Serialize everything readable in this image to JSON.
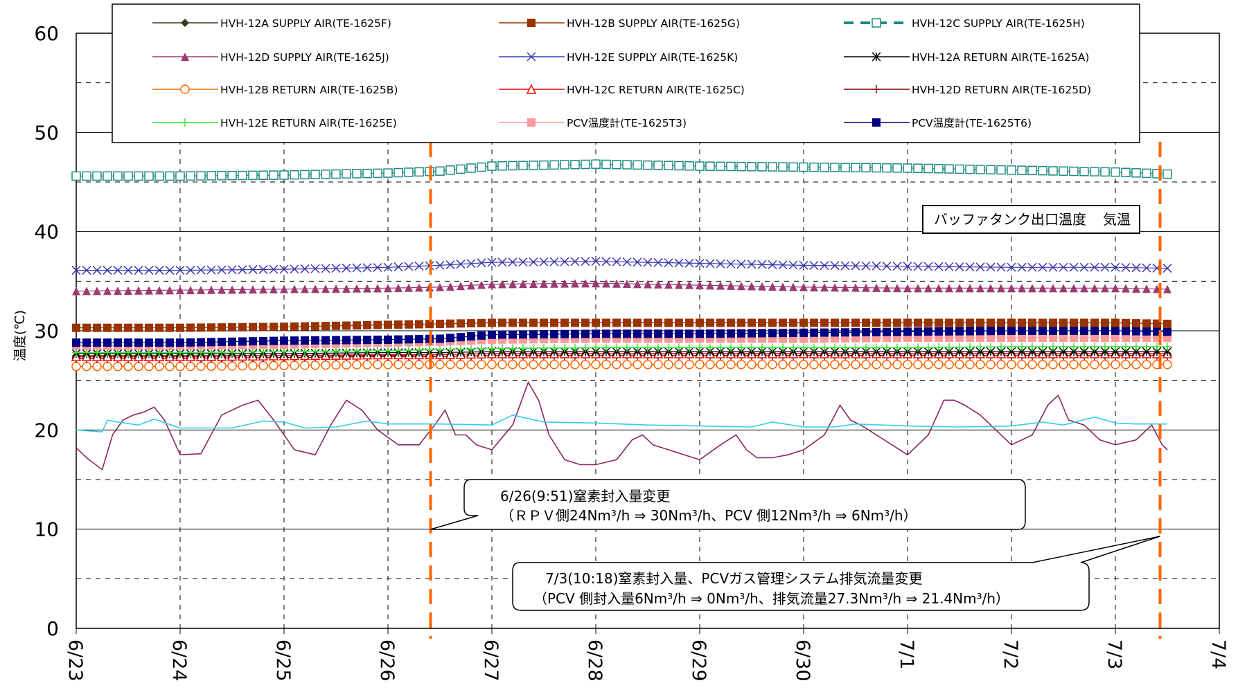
{
  "chart_data": {
    "type": "line",
    "ylabel": "温度(℃)",
    "ylim": [
      0,
      60
    ],
    "yticks": [
      "0",
      "10",
      "20",
      "30",
      "40",
      "50",
      "60"
    ],
    "xlim": [
      "6/23",
      "7/4"
    ],
    "xticks": [
      "6/23",
      "6/24",
      "6/25",
      "6/26",
      "6/27",
      "6/28",
      "6/29",
      "6/30",
      "7/1",
      "7/2",
      "7/3",
      "7/4"
    ],
    "grid": true,
    "legend_position": "top",
    "series": [
      {
        "name": "HVH-12A SUPPLY AIR(TE-1625F)",
        "color": "#3b3b1e",
        "marker": "diamond",
        "x": [
          0,
          1,
          2,
          3,
          3.5,
          4,
          5,
          6,
          7,
          8,
          9,
          10,
          10.5
        ],
        "values": [
          27.5,
          27.5,
          27.5,
          27.5,
          27.6,
          27.7,
          27.7,
          27.7,
          27.7,
          27.7,
          27.7,
          27.7,
          27.7
        ]
      },
      {
        "name": "HVH-12B SUPPLY AIR(TE-1625G)",
        "color": "#993300",
        "marker": "square",
        "x": [
          0,
          1,
          2,
          3,
          3.5,
          4,
          5,
          6,
          7,
          8,
          9,
          10,
          10.5
        ],
        "values": [
          30.3,
          30.3,
          30.4,
          30.6,
          30.7,
          30.8,
          30.8,
          30.8,
          30.8,
          30.8,
          30.8,
          30.8,
          30.7
        ]
      },
      {
        "name": "HVH-12C SUPPLY AIR(TE-1625H)",
        "color": "#1c8a80",
        "marker": "open-square",
        "x": [
          0,
          1,
          2,
          3,
          3.5,
          4,
          5,
          6,
          7,
          8,
          9,
          10,
          10.5
        ],
        "values": [
          45.6,
          45.6,
          45.7,
          45.9,
          46.1,
          46.6,
          46.8,
          46.6,
          46.5,
          46.4,
          46.2,
          46.0,
          45.8
        ]
      },
      {
        "name": "HVH-12D SUPPLY AIR(TE-1625J)",
        "color": "#9b3b70",
        "marker": "triangle",
        "x": [
          0,
          1,
          2,
          3,
          3.5,
          4,
          5,
          6,
          7,
          8,
          9,
          10,
          10.5
        ],
        "values": [
          34.0,
          34.1,
          34.2,
          34.3,
          34.4,
          34.7,
          34.8,
          34.6,
          34.4,
          34.3,
          34.3,
          34.3,
          34.2
        ]
      },
      {
        "name": "HVH-12E SUPPLY AIR(TE-1625K)",
        "color": "#3a3ab0",
        "marker": "x",
        "x": [
          0,
          1,
          2,
          3,
          3.5,
          4,
          5,
          6,
          7,
          8,
          9,
          10,
          10.5
        ],
        "values": [
          36.1,
          36.1,
          36.2,
          36.4,
          36.6,
          36.9,
          37.0,
          36.8,
          36.6,
          36.5,
          36.4,
          36.4,
          36.3
        ]
      },
      {
        "name": "HVH-12A RETURN AIR(TE-1625A)",
        "color": "#000000",
        "marker": "star",
        "x": [
          0,
          1,
          2,
          3,
          3.5,
          4,
          5,
          6,
          7,
          8,
          9,
          10,
          10.5
        ],
        "values": [
          27.7,
          27.7,
          27.7,
          27.8,
          27.8,
          27.9,
          27.9,
          27.9,
          27.9,
          27.9,
          27.9,
          27.9,
          27.9
        ]
      },
      {
        "name": "HVH-12B RETURN AIR(TE-1625B)",
        "color": "#ff6600",
        "marker": "open-circle",
        "x": [
          0,
          1,
          2,
          3,
          3.5,
          4,
          5,
          6,
          7,
          8,
          9,
          10,
          10.5
        ],
        "values": [
          26.4,
          26.4,
          26.5,
          26.6,
          26.6,
          26.6,
          26.6,
          26.6,
          26.6,
          26.6,
          26.6,
          26.6,
          26.6
        ]
      },
      {
        "name": "HVH-12C RETURN AIR(TE-1625C)",
        "color": "#ff0000",
        "marker": "open-triangle",
        "x": [
          0,
          1,
          2,
          3,
          3.5,
          4,
          5,
          6,
          7,
          8,
          9,
          10,
          10.5
        ],
        "values": [
          27.4,
          27.4,
          27.5,
          27.6,
          27.6,
          27.7,
          27.7,
          27.7,
          27.7,
          27.7,
          27.7,
          27.7,
          27.7
        ]
      },
      {
        "name": "HVH-12D RETURN AIR(TE-1625D)",
        "color": "#800000",
        "marker": "plus",
        "x": [
          0,
          1,
          2,
          3,
          3.5,
          4,
          5,
          6,
          7,
          8,
          9,
          10,
          10.5
        ],
        "values": [
          27.2,
          27.2,
          27.3,
          27.4,
          27.4,
          27.5,
          27.5,
          27.5,
          27.5,
          27.5,
          27.5,
          27.5,
          27.5
        ]
      },
      {
        "name": "HVH-12E RETURN AIR(TE-1625E)",
        "color": "#33ee33",
        "marker": "plus",
        "x": [
          0,
          1,
          2,
          3,
          3.5,
          4,
          5,
          6,
          7,
          8,
          9,
          10,
          10.5
        ],
        "values": [
          27.8,
          27.8,
          27.9,
          28.0,
          28.1,
          28.2,
          28.3,
          28.3,
          28.3,
          28.3,
          28.4,
          28.4,
          28.4
        ]
      },
      {
        "name": "PCV温度計(TE-1625T3)",
        "color": "#ff9999",
        "marker": "square",
        "x": [
          0,
          1,
          2,
          3,
          3.5,
          4,
          5,
          6,
          7,
          8,
          9,
          10,
          10.5
        ],
        "values": [
          28.5,
          28.5,
          28.6,
          28.8,
          28.9,
          29.1,
          29.2,
          29.2,
          29.2,
          29.3,
          29.3,
          29.3,
          29.3
        ]
      },
      {
        "name": "PCV温度計(TE-1625T6)",
        "color": "#000080",
        "marker": "square",
        "x": [
          0,
          1,
          2,
          3,
          3.5,
          4,
          5,
          6,
          7,
          8,
          9,
          10,
          10.5
        ],
        "values": [
          28.8,
          28.8,
          29.0,
          29.1,
          29.2,
          29.6,
          29.7,
          29.7,
          29.8,
          29.9,
          30.0,
          30.0,
          29.9
        ]
      },
      {
        "name": "バッファタンク出口温度",
        "color": "#33ccee",
        "marker": "none",
        "x": [
          0,
          0.25,
          0.3,
          0.4,
          0.6,
          0.75,
          1,
          1.5,
          1.8,
          2,
          2.2,
          2.5,
          2.8,
          3,
          3.5,
          4,
          4.2,
          4.5,
          5,
          5.5,
          6,
          6.5,
          6.7,
          7,
          7.3,
          7.5,
          8,
          8.5,
          9,
          9.3,
          9.5,
          9.8,
          10,
          10.2,
          10.5
        ],
        "values": [
          20.0,
          19.8,
          21.0,
          20.8,
          20.5,
          21.1,
          20.2,
          20.2,
          20.9,
          20.8,
          20.2,
          20.3,
          20.9,
          20.6,
          20.6,
          20.5,
          21.5,
          20.8,
          20.7,
          20.5,
          20.4,
          20.3,
          20.8,
          20.3,
          20.3,
          20.6,
          20.4,
          20.3,
          20.4,
          20.8,
          20.5,
          21.3,
          20.7,
          20.6,
          20.6
        ]
      },
      {
        "name": "気温",
        "color": "#8b2560",
        "marker": "none",
        "x": [
          0,
          0.1,
          0.25,
          0.35,
          0.45,
          0.55,
          0.65,
          0.75,
          0.85,
          1,
          1.2,
          1.4,
          1.6,
          1.75,
          1.9,
          2.1,
          2.3,
          2.45,
          2.6,
          2.75,
          2.9,
          3.1,
          3.3,
          3.45,
          3.55,
          3.65,
          3.75,
          3.85,
          4,
          4.2,
          4.35,
          4.45,
          4.55,
          4.7,
          4.85,
          5,
          5.2,
          5.35,
          5.45,
          5.55,
          5.7,
          5.85,
          6,
          6.2,
          6.35,
          6.45,
          6.55,
          6.7,
          6.85,
          7,
          7.2,
          7.35,
          7.45,
          7.55,
          7.7,
          7.85,
          8,
          8.2,
          8.35,
          8.45,
          8.55,
          8.7,
          8.85,
          9,
          9.2,
          9.35,
          9.45,
          9.55,
          9.7,
          9.85,
          10,
          10.2,
          10.35,
          10.45,
          10.5
        ],
        "values": [
          18.2,
          17.2,
          16.0,
          19.5,
          21.0,
          21.5,
          21.8,
          22.3,
          21.0,
          17.5,
          17.6,
          21.5,
          22.5,
          23.0,
          21.0,
          18.0,
          17.5,
          20.5,
          23.0,
          22.0,
          20.0,
          18.5,
          18.5,
          20.5,
          22.0,
          19.5,
          19.5,
          18.5,
          18.0,
          20.5,
          24.8,
          23.0,
          19.5,
          17.0,
          16.5,
          16.5,
          17.0,
          19.0,
          19.5,
          18.5,
          18.0,
          17.5,
          17.0,
          18.5,
          19.5,
          18.0,
          17.2,
          17.2,
          17.5,
          18.0,
          19.5,
          22.5,
          21.0,
          20.5,
          19.5,
          18.5,
          17.5,
          19.5,
          23.0,
          23.0,
          22.5,
          21.5,
          20.0,
          18.5,
          19.5,
          22.5,
          23.5,
          21.0,
          20.5,
          19.0,
          18.5,
          19.0,
          20.5,
          18.5,
          18.0
        ]
      }
    ],
    "annotations": [
      {
        "line1": "6/26(9:51)窒素封入量変更",
        "line2": "（ＲＰＶ側24Nm³/h ⇒ 30Nm³/h、PCV 側12Nm³/h ⇒ 6Nm³/h）",
        "target_x": 3.41
      },
      {
        "line1": "7/3(10:18)窒素封入量、PCVガス管理システム排気流量変更",
        "line2": "（PCV 側封入量6Nm³/h ⇒ 0Nm³/h、排気流量27.3Nm³/h ⇒ 21.4Nm³/h）",
        "target_x": 10.43
      }
    ],
    "inline_legend": {
      "label_buffer": "バッファタンク出口温度",
      "label_air": "気温"
    }
  }
}
